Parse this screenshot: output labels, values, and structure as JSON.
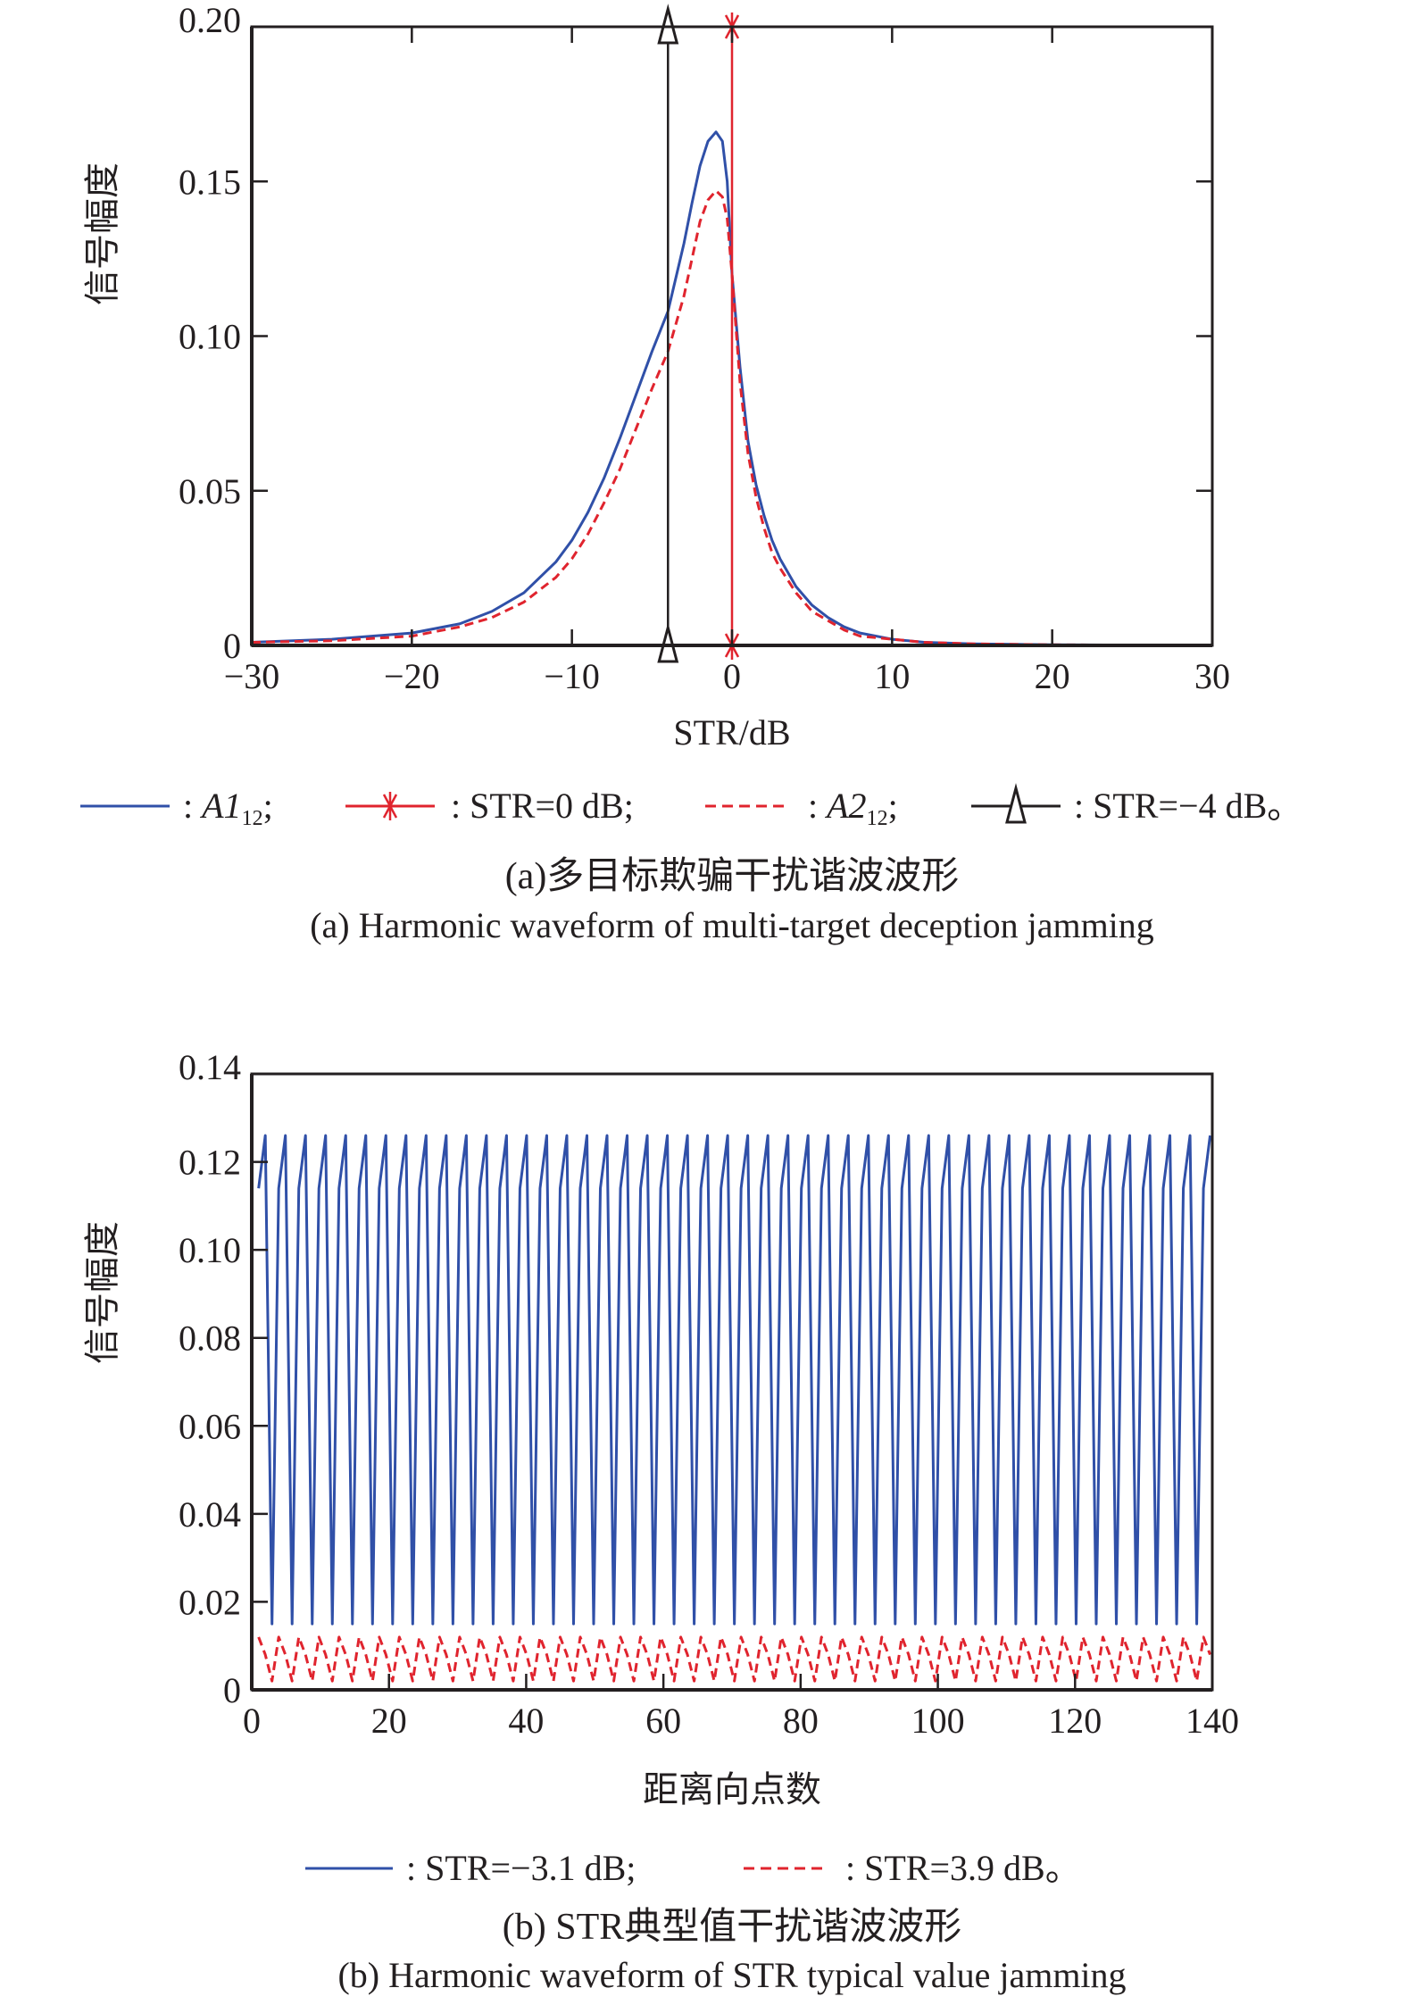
{
  "chart_data": [
    {
      "type": "line",
      "panel": "a",
      "xlabel": "STR/dB",
      "ylabel": "信号幅度",
      "xlim": [
        -30,
        30
      ],
      "ylim": [
        0,
        0.2
      ],
      "xticks": [
        "−30",
        "−20",
        "−10",
        "0",
        "10",
        "20",
        "30"
      ],
      "xtick_values": [
        -30,
        -20,
        -10,
        0,
        10,
        20,
        30
      ],
      "yticks": [
        "0",
        "0.05",
        "0.10",
        "0.15",
        "0.20"
      ],
      "ytick_values": [
        0,
        0.05,
        0.1,
        0.15,
        0.2
      ],
      "grid": false,
      "series": [
        {
          "name": "A1_12",
          "color": "#3050a8",
          "style": "solid",
          "x": [
            -30,
            -25,
            -20,
            -17,
            -15,
            -13,
            -11,
            -10,
            -9,
            -8,
            -7,
            -6,
            -5,
            -4,
            -3,
            -2.5,
            -2,
            -1.5,
            -1,
            -0.6,
            -0.3,
            0,
            0.5,
            1,
            1.5,
            2,
            2.5,
            3,
            4,
            5,
            6,
            7,
            8,
            10,
            12,
            15,
            20,
            25,
            30
          ],
          "y": [
            0.001,
            0.002,
            0.004,
            0.007,
            0.011,
            0.017,
            0.027,
            0.034,
            0.043,
            0.054,
            0.067,
            0.081,
            0.095,
            0.108,
            0.13,
            0.143,
            0.155,
            0.163,
            0.166,
            0.163,
            0.15,
            0.12,
            0.09,
            0.066,
            0.052,
            0.042,
            0.034,
            0.028,
            0.019,
            0.013,
            0.009,
            0.006,
            0.004,
            0.002,
            0.001,
            0.0005,
            0.0002,
            0.0001,
            0.0001
          ]
        },
        {
          "name": "A2_12",
          "color": "#e0242e",
          "style": "dashed",
          "x": [
            -30,
            -25,
            -20,
            -17,
            -15,
            -13,
            -11,
            -10,
            -9,
            -8,
            -7,
            -6,
            -5,
            -4,
            -3,
            -2.5,
            -2,
            -1.5,
            -1,
            -0.6,
            -0.3,
            0,
            0.5,
            1,
            1.5,
            2,
            2.5,
            3,
            4,
            5,
            6,
            7,
            8,
            10,
            12,
            15,
            20,
            25,
            30
          ],
          "y": [
            0.001,
            0.0015,
            0.003,
            0.006,
            0.009,
            0.014,
            0.022,
            0.028,
            0.036,
            0.046,
            0.057,
            0.07,
            0.083,
            0.095,
            0.113,
            0.125,
            0.137,
            0.144,
            0.147,
            0.145,
            0.138,
            0.12,
            0.085,
            0.062,
            0.048,
            0.038,
            0.03,
            0.025,
            0.017,
            0.011,
            0.008,
            0.005,
            0.003,
            0.002,
            0.001,
            0.0005,
            0.0002,
            0.0001,
            0.0001
          ]
        },
        {
          "name": "STR=0 dB",
          "color": "#e0242e",
          "style": "solid",
          "marker": "asterisk",
          "x": [
            0,
            0
          ],
          "y": [
            0,
            0.2
          ]
        },
        {
          "name": "STR=−4 dB",
          "color": "#231f20",
          "style": "solid",
          "marker": "triangle",
          "x": [
            -4,
            -4
          ],
          "y": [
            0,
            0.2
          ]
        }
      ],
      "legend": [
        {
          "label_prefix": ": ",
          "label_italic": "A1",
          "label_sub": "12",
          "label_suffix": ";",
          "series": 0
        },
        {
          "label": ": STR=0 dB;",
          "series": 2
        },
        {
          "label_prefix": ": ",
          "label_italic": "A2",
          "label_sub": "12",
          "label_suffix": ";",
          "series": 1
        },
        {
          "label": ": STR=−4 dB。",
          "series": 3
        }
      ],
      "legend_placement": "below",
      "caption_cn": "(a)多目标欺骗干扰谐波波形",
      "caption_en": "(a) Harmonic waveform of multi-target deception jamming"
    },
    {
      "type": "line",
      "panel": "b",
      "xlabel": "距离向点数",
      "ylabel": "信号幅度",
      "xlim": [
        0,
        140
      ],
      "ylim": [
        0,
        0.14
      ],
      "xticks": [
        "0",
        "20",
        "40",
        "60",
        "80",
        "100",
        "120",
        "140"
      ],
      "xtick_values": [
        0,
        20,
        40,
        60,
        80,
        100,
        120,
        140
      ],
      "yticks": [
        "0",
        "0.02",
        "0.04",
        "0.06",
        "0.08",
        "0.10",
        "0.12",
        "0.14"
      ],
      "ytick_values": [
        0,
        0.02,
        0.04,
        0.06,
        0.08,
        0.1,
        0.12,
        0.14
      ],
      "grid": false,
      "series": [
        {
          "name": "STR=−3.1 dB",
          "color": "#3050a8",
          "style": "solid",
          "period": 2.93,
          "pattern_y": [
            0.114,
            0.126,
            0.015
          ],
          "x_start": 1,
          "x_end": 140
        },
        {
          "name": "STR=3.9 dB",
          "color": "#e0242e",
          "style": "dashed",
          "period": 2.93,
          "pattern_y": [
            0.012,
            0.008,
            0.002
          ],
          "x_start": 1,
          "x_end": 140
        }
      ],
      "legend": [
        {
          "label": ": STR=−3.1 dB;",
          "series": 0
        },
        {
          "label": ": STR=3.9 dB。",
          "series": 1
        }
      ],
      "legend_placement": "below",
      "caption_cn": "(b) STR典型值干扰谐波波形",
      "caption_en": "(b) Harmonic waveform of STR typical value jamming"
    }
  ]
}
